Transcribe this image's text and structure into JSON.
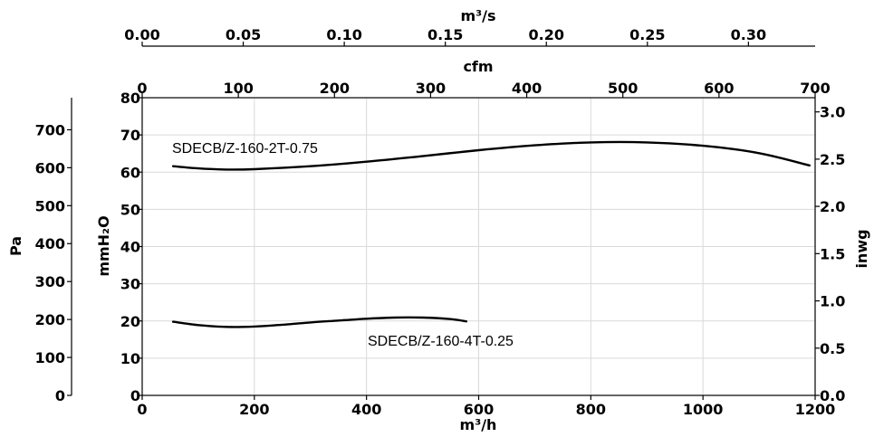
{
  "chart_data": {
    "type": "line",
    "axes": {
      "bottom": {
        "label": "m³/h",
        "range": [
          0,
          1200
        ],
        "ticks": [
          "0",
          "200",
          "400",
          "600",
          "800",
          "1000",
          "1200"
        ]
      },
      "top_cfm": {
        "label": "cfm",
        "range": [
          0,
          700
        ],
        "ticks": [
          "0",
          "100",
          "200",
          "300",
          "400",
          "500",
          "600",
          "700"
        ]
      },
      "top_m3s": {
        "label": "m³/s",
        "range": [
          0,
          0.333
        ],
        "ticks": [
          "0.00",
          "0.05",
          "0.10",
          "0.15",
          "0.20",
          "0.25",
          "0.30"
        ]
      },
      "left_mmh2o": {
        "label": "mmH₂O",
        "range": [
          0,
          80
        ],
        "ticks": [
          "0",
          "10",
          "20",
          "30",
          "40",
          "50",
          "60",
          "70",
          "80"
        ]
      },
      "left_pa": {
        "label": "Pa",
        "range": [
          0,
          784.5
        ],
        "ticks": [
          "0",
          "100",
          "200",
          "300",
          "400",
          "500",
          "600",
          "700"
        ]
      },
      "right_inwg": {
        "label": "inwg",
        "range": [
          0,
          3.15
        ],
        "ticks": [
          "0.0",
          "0.5",
          "1.0",
          "1.5",
          "2.0",
          "2.5",
          "3.0"
        ]
      }
    },
    "grid": true,
    "series": [
      {
        "name": "SDECB/Z-160-2T-0.75",
        "x": [
          55,
          100,
          150,
          200,
          300,
          400,
          500,
          600,
          700,
          800,
          900,
          1000,
          1100,
          1190
        ],
        "y": [
          61.6,
          61.0,
          60.7,
          60.8,
          61.6,
          62.8,
          64.3,
          65.9,
          67.2,
          68.0,
          68.0,
          67.1,
          65.1,
          61.8
        ]
      },
      {
        "name": "SDECB/Z-160-4T-0.25",
        "x": [
          55,
          100,
          150,
          200,
          250,
          300,
          350,
          400,
          450,
          500,
          550,
          578
        ],
        "y": [
          19.8,
          18.9,
          18.4,
          18.5,
          19.0,
          19.6,
          20.1,
          20.6,
          20.9,
          20.9,
          20.5,
          19.9
        ]
      }
    ]
  }
}
